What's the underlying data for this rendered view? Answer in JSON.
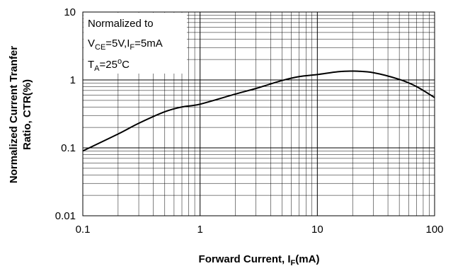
{
  "chart_data": {
    "type": "line",
    "x_scale": "log",
    "y_scale": "log",
    "xlim": [
      0.1,
      100
    ],
    "ylim": [
      0.01,
      10
    ],
    "grid": true,
    "xlabel": {
      "main": "Forward Current, I",
      "sub": "F",
      "suffix": "(mA)"
    },
    "ylabel": [
      "Normalized Current Tranfer",
      "Ratio, CTR(%)"
    ],
    "x_ticks": [
      {
        "value": 0.1,
        "label": "0.1"
      },
      {
        "value": 1,
        "label": "1"
      },
      {
        "value": 10,
        "label": "10"
      },
      {
        "value": 100,
        "label": "100"
      }
    ],
    "y_ticks": [
      {
        "value": 0.01,
        "label": "0.01"
      },
      {
        "value": 0.1,
        "label": "0.1"
      },
      {
        "value": 1,
        "label": "1"
      },
      {
        "value": 10,
        "label": "10"
      }
    ],
    "annotation": {
      "line1": "Normalized to",
      "line2": {
        "v": "V",
        "vsub": "CE",
        "mid": "=5V,I",
        "isub": "F",
        "end": "=5mA"
      },
      "line3": {
        "t": "T",
        "tsub": "A",
        "mid": "=25",
        "sup": "o",
        "end": "C"
      }
    },
    "series": [
      {
        "x": [
          0.1,
          0.2,
          0.3,
          0.5,
          0.7,
          1,
          2,
          3,
          5,
          7,
          10,
          15,
          20,
          30,
          50,
          70,
          100
        ],
        "y": [
          0.09,
          0.16,
          0.23,
          0.34,
          0.4,
          0.44,
          0.62,
          0.75,
          0.98,
          1.12,
          1.2,
          1.32,
          1.35,
          1.28,
          1.02,
          0.8,
          0.55
        ]
      }
    ]
  }
}
